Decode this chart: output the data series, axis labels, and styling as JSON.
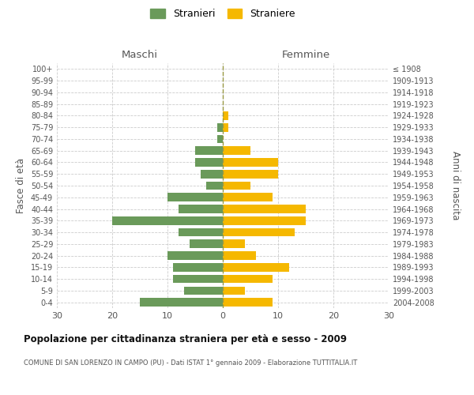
{
  "age_groups": [
    "100+",
    "95-99",
    "90-94",
    "85-89",
    "80-84",
    "75-79",
    "70-74",
    "65-69",
    "60-64",
    "55-59",
    "50-54",
    "45-49",
    "40-44",
    "35-39",
    "30-34",
    "25-29",
    "20-24",
    "15-19",
    "10-14",
    "5-9",
    "0-4"
  ],
  "birth_years": [
    "≤ 1908",
    "1909-1913",
    "1914-1918",
    "1919-1923",
    "1924-1928",
    "1929-1933",
    "1934-1938",
    "1939-1943",
    "1944-1948",
    "1949-1953",
    "1954-1958",
    "1959-1963",
    "1964-1968",
    "1969-1973",
    "1974-1978",
    "1979-1983",
    "1984-1988",
    "1989-1993",
    "1994-1998",
    "1999-2003",
    "2004-2008"
  ],
  "males": [
    0,
    0,
    0,
    0,
    0,
    1,
    1,
    5,
    5,
    4,
    3,
    10,
    8,
    20,
    8,
    6,
    10,
    9,
    9,
    7,
    15
  ],
  "females": [
    0,
    0,
    0,
    0,
    1,
    1,
    0,
    5,
    10,
    10,
    5,
    9,
    15,
    15,
    13,
    4,
    6,
    12,
    9,
    4,
    9
  ],
  "male_color": "#6a9a5a",
  "female_color": "#f5b800",
  "background_color": "#ffffff",
  "grid_color": "#cccccc",
  "title": "Popolazione per cittadinanza straniera per età e sesso - 2009",
  "subtitle": "COMUNE DI SAN LORENZO IN CAMPO (PU) - Dati ISTAT 1° gennaio 2009 - Elaborazione TUTTITALIA.IT",
  "xlabel_left": "Maschi",
  "xlabel_right": "Femmine",
  "ylabel_left": "Fasce di età",
  "ylabel_right": "Anni di nascita",
  "legend_male": "Stranieri",
  "legend_female": "Straniere",
  "xlim": 30
}
